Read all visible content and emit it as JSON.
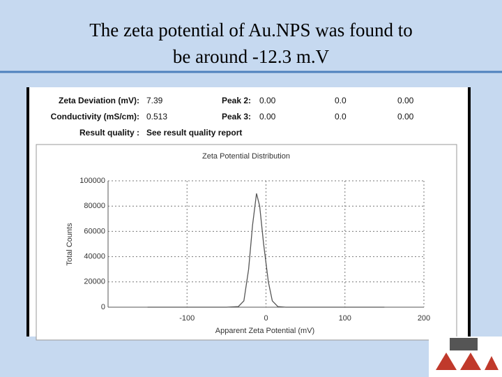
{
  "slide_title": "The zeta potential of Au.NPS was found to be around -12.3 m.V",
  "info": {
    "rows": [
      [
        "Zeta Deviation (mV):",
        "7.39",
        "Peak 2:",
        "0.00",
        "0.0",
        "0.00"
      ],
      [
        "Conductivity (mS/cm):",
        "0.513",
        "Peak 3:",
        "0.00",
        "0.0",
        "0.00"
      ],
      [
        "Result quality :",
        "See result quality report"
      ]
    ]
  },
  "chart_data": {
    "type": "line",
    "title": "Zeta Potential Distribution",
    "x_label": "Apparent Zeta Potential (mV)",
    "y_label": "Total Counts",
    "x": [
      -150,
      -50,
      -35,
      -28,
      -22,
      -17,
      -12,
      -8,
      -3,
      3,
      8,
      15,
      25,
      150
    ],
    "series": [
      {
        "name": "Total Counts",
        "color": "#555555",
        "values": [
          0,
          0,
          500,
          5000,
          30000,
          65000,
          90000,
          80000,
          50000,
          20000,
          5000,
          500,
          0,
          0
        ]
      }
    ],
    "xlim": [
      -200,
      200
    ],
    "xticks": [
      -100,
      0,
      100,
      200
    ],
    "ylim": [
      0,
      100000
    ],
    "yticks": [
      0,
      20000,
      40000,
      60000,
      80000,
      100000
    ],
    "grid": true
  }
}
